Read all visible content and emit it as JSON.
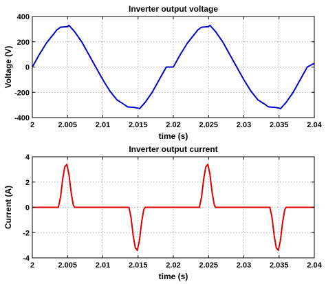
{
  "chart_data": [
    {
      "type": "line",
      "title": "Inverter output voltage",
      "xlabel": "time (s)",
      "ylabel": "Voltage (V)",
      "xlim": [
        2,
        2.04
      ],
      "ylim": [
        -400,
        400
      ],
      "xticks": [
        "2",
        "2.005",
        "2.01",
        "2.015",
        "2.02",
        "2.025",
        "2.03",
        "2.035",
        "2.04"
      ],
      "yticks": [
        "400",
        "200",
        "0",
        "-200",
        "-400"
      ],
      "grid": true,
      "color": "#0000cc",
      "series": [
        {
          "x": [
            2.0,
            2.001,
            2.002,
            2.003,
            2.0035,
            2.004,
            2.0045,
            2.005,
            2.0052,
            2.006,
            2.007,
            2.008,
            2.009,
            2.01,
            2.011,
            2.012,
            2.013,
            2.0135,
            2.014,
            2.0145,
            2.015,
            2.0152,
            2.016,
            2.017,
            2.018,
            2.019,
            2.02,
            2.021,
            2.022,
            2.023,
            2.0235,
            2.024,
            2.0245,
            2.025,
            2.0252,
            2.026,
            2.027,
            2.028,
            2.029,
            2.03,
            2.031,
            2.032,
            2.033,
            2.0335,
            2.034,
            2.0345,
            2.035,
            2.0352,
            2.036,
            2.037,
            2.038,
            2.039,
            2.04
          ],
          "y": [
            0,
            100,
            190,
            260,
            295,
            315,
            318,
            320,
            330,
            280,
            200,
            100,
            0,
            -100,
            -190,
            -260,
            -295,
            -315,
            -318,
            -320,
            -325,
            -330,
            -280,
            -200,
            -100,
            0,
            0,
            100,
            190,
            260,
            295,
            315,
            318,
            320,
            330,
            280,
            200,
            100,
            0,
            -100,
            -190,
            -260,
            -295,
            -315,
            -318,
            -320,
            -325,
            -330,
            -280,
            -200,
            -100,
            0,
            30
          ]
        }
      ]
    },
    {
      "type": "line",
      "title": "Inverter output current",
      "xlabel": "time (s)",
      "ylabel": "Current (A)",
      "xlim": [
        2,
        2.04
      ],
      "ylim": [
        -4,
        4
      ],
      "xticks": [
        "2",
        "2.005",
        "2.01",
        "2.015",
        "2.02",
        "2.025",
        "2.03",
        "2.035",
        "2.04"
      ],
      "yticks": [
        "4",
        "2",
        "0",
        "-2",
        "-4"
      ],
      "grid": true,
      "color": "#dd0000",
      "series": [
        {
          "x": [
            2.0,
            2.0037,
            2.004,
            2.0043,
            2.0046,
            2.0049,
            2.0052,
            2.0055,
            2.0058,
            2.006,
            2.0137,
            2.014,
            2.0143,
            2.0146,
            2.0149,
            2.0152,
            2.0155,
            2.0158,
            2.016,
            2.0237,
            2.024,
            2.0243,
            2.0246,
            2.0249,
            2.0252,
            2.0255,
            2.0258,
            2.026,
            2.0337,
            2.034,
            2.0343,
            2.0346,
            2.0349,
            2.0352,
            2.0355,
            2.0358,
            2.036,
            2.04
          ],
          "y": [
            0,
            0,
            0.8,
            2.2,
            3.2,
            3.4,
            2.6,
            1.2,
            0.2,
            0,
            0,
            -0.8,
            -2.2,
            -3.2,
            -3.4,
            -2.6,
            -1.2,
            -0.2,
            0,
            0,
            0.8,
            2.2,
            3.2,
            3.4,
            2.6,
            1.2,
            0.2,
            0,
            0,
            -0.8,
            -2.2,
            -3.2,
            -3.4,
            -2.6,
            -1.2,
            -0.2,
            0,
            0
          ]
        }
      ]
    }
  ]
}
